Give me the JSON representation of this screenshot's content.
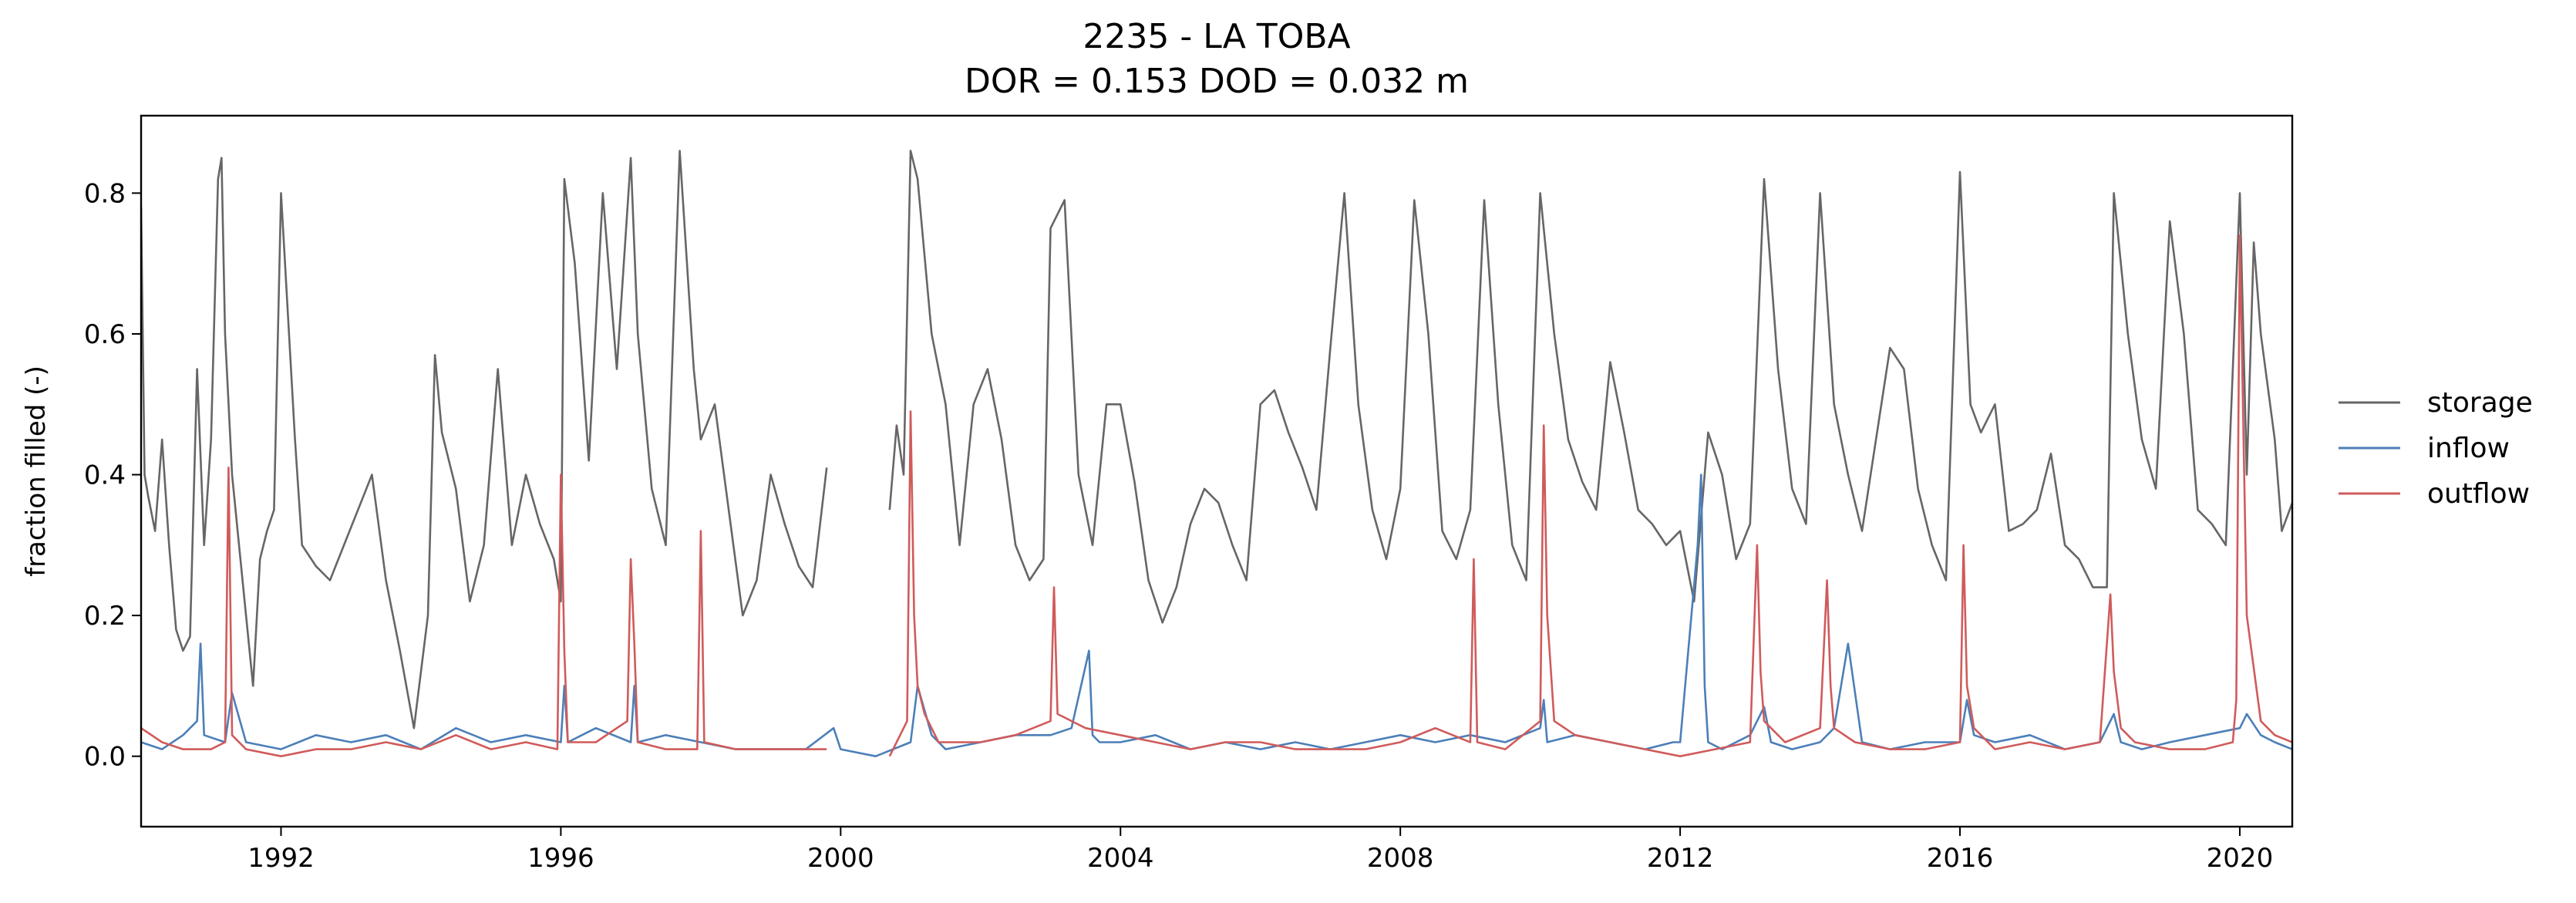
{
  "chart_data": {
    "type": "line",
    "title": "2235 - LA TOBA",
    "subtitle": "DOR = 0.153  DOD = 0.032 m",
    "xlabel": "",
    "ylabel": "fraction filled (-)",
    "xlim": [
      1990.0,
      2020.75
    ],
    "ylim": [
      -0.1,
      0.91
    ],
    "xticks": [
      1992,
      1996,
      2000,
      2004,
      2008,
      2012,
      2016,
      2020
    ],
    "xtick_labels": [
      "1992",
      "1996",
      "2000",
      "2004",
      "2008",
      "2012",
      "2016",
      "2020"
    ],
    "yticks": [
      0.0,
      0.2,
      0.4,
      0.6,
      0.8
    ],
    "ytick_labels": [
      "0.0",
      "0.2",
      "0.4",
      "0.6",
      "0.8"
    ],
    "grid": false,
    "legend_position": "right",
    "series": [
      {
        "name": "storage",
        "color": "#666666",
        "x": [
          1990.0,
          1990.05,
          1990.1,
          1990.2,
          1990.3,
          1990.4,
          1990.5,
          1990.6,
          1990.7,
          1990.8,
          1990.9,
          1991.0,
          1991.1,
          1991.15,
          1991.2,
          1991.3,
          1991.4,
          1991.5,
          1991.6,
          1991.7,
          1991.8,
          1991.9,
          1992.0,
          1992.2,
          1992.3,
          1992.5,
          1992.7,
          1992.9,
          1993.1,
          1993.3,
          1993.5,
          1993.7,
          1993.9,
          1994.1,
          1994.2,
          1994.3,
          1994.5,
          1994.7,
          1994.9,
          1995.1,
          1995.3,
          1995.5,
          1995.7,
          1995.9,
          1996.0,
          1996.05,
          1996.2,
          1996.4,
          1996.6,
          1996.8,
          1997.0,
          1997.1,
          1997.3,
          1997.5,
          1997.7,
          1997.9,
          1998.0,
          1998.2,
          1998.4,
          1998.6,
          1998.8,
          1999.0,
          1999.2,
          1999.4,
          1999.6,
          1999.8,
          null,
          2000.7,
          2000.8,
          2000.9,
          2001.0,
          2001.1,
          2001.3,
          2001.5,
          2001.7,
          2001.9,
          2002.1,
          2002.3,
          2002.5,
          2002.7,
          2002.9,
          2003.0,
          2003.2,
          2003.4,
          2003.6,
          2003.8,
          2004.0,
          2004.2,
          2004.4,
          2004.6,
          2004.8,
          2005.0,
          2005.2,
          2005.4,
          2005.6,
          2005.8,
          2006.0,
          2006.2,
          2006.4,
          2006.6,
          2006.8,
          2007.0,
          2007.2,
          2007.4,
          2007.6,
          2007.8,
          2008.0,
          2008.2,
          2008.4,
          2008.6,
          2008.8,
          2009.0,
          2009.2,
          2009.4,
          2009.6,
          2009.8,
          2010.0,
          2010.2,
          2010.4,
          2010.6,
          2010.8,
          2011.0,
          2011.2,
          2011.4,
          2011.6,
          2011.8,
          2012.0,
          2012.2,
          2012.4,
          2012.6,
          2012.8,
          2013.0,
          2013.2,
          2013.4,
          2013.6,
          2013.8,
          2014.0,
          2014.2,
          2014.4,
          2014.6,
          2014.8,
          2015.0,
          2015.2,
          2015.4,
          2015.6,
          2015.8,
          2016.0,
          2016.15,
          2016.3,
          2016.5,
          2016.7,
          2016.9,
          2017.1,
          2017.3,
          2017.5,
          2017.7,
          2017.9,
          2018.1,
          2018.2,
          2018.4,
          2018.6,
          2018.8,
          2019.0,
          2019.2,
          2019.4,
          2019.6,
          2019.8,
          2020.0,
          2020.1,
          2020.2,
          2020.3,
          2020.5,
          2020.6,
          2020.75
        ],
        "y": [
          0.78,
          0.4,
          0.37,
          0.32,
          0.45,
          0.3,
          0.18,
          0.15,
          0.17,
          0.55,
          0.3,
          0.45,
          0.82,
          0.85,
          0.6,
          0.4,
          0.3,
          0.2,
          0.1,
          0.28,
          0.32,
          0.35,
          0.8,
          0.45,
          0.3,
          0.27,
          0.25,
          0.3,
          0.35,
          0.4,
          0.25,
          0.15,
          0.04,
          0.2,
          0.57,
          0.46,
          0.38,
          0.22,
          0.3,
          0.55,
          0.3,
          0.4,
          0.33,
          0.28,
          0.22,
          0.82,
          0.7,
          0.42,
          0.8,
          0.55,
          0.85,
          0.6,
          0.38,
          0.3,
          0.86,
          0.55,
          0.45,
          0.5,
          0.35,
          0.2,
          0.25,
          0.4,
          0.33,
          0.27,
          0.24,
          0.41,
          null,
          0.35,
          0.47,
          0.4,
          0.86,
          0.82,
          0.6,
          0.5,
          0.3,
          0.5,
          0.55,
          0.45,
          0.3,
          0.25,
          0.28,
          0.75,
          0.79,
          0.4,
          0.3,
          0.5,
          0.5,
          0.39,
          0.25,
          0.19,
          0.24,
          0.33,
          0.38,
          0.36,
          0.3,
          0.25,
          0.5,
          0.52,
          0.46,
          0.41,
          0.35,
          0.58,
          0.8,
          0.5,
          0.35,
          0.28,
          0.38,
          0.79,
          0.6,
          0.32,
          0.28,
          0.35,
          0.79,
          0.5,
          0.3,
          0.25,
          0.8,
          0.6,
          0.45,
          0.39,
          0.35,
          0.56,
          0.46,
          0.35,
          0.33,
          0.3,
          0.32,
          0.22,
          0.46,
          0.4,
          0.28,
          0.33,
          0.82,
          0.55,
          0.38,
          0.33,
          0.8,
          0.5,
          0.4,
          0.32,
          0.45,
          0.58,
          0.55,
          0.38,
          0.3,
          0.25,
          0.83,
          0.5,
          0.46,
          0.5,
          0.32,
          0.33,
          0.35,
          0.43,
          0.3,
          0.28,
          0.24,
          0.24,
          0.8,
          0.6,
          0.45,
          0.38,
          0.76,
          0.6,
          0.35,
          0.33,
          0.3,
          0.8,
          0.4,
          0.73,
          0.6,
          0.45,
          0.32,
          0.36
        ]
      },
      {
        "name": "inflow",
        "color": "#4c7fb8",
        "x": [
          1990.0,
          1990.3,
          1990.6,
          1990.8,
          1990.85,
          1990.9,
          1991.2,
          1991.3,
          1991.5,
          1992.0,
          1992.5,
          1993.0,
          1993.5,
          1994.0,
          1994.5,
          1995.0,
          1995.5,
          1996.0,
          1996.05,
          1996.1,
          1996.5,
          1997.0,
          1997.05,
          1997.1,
          1997.5,
          1998.0,
          1998.5,
          1999.0,
          1999.5,
          1999.9,
          2000.0,
          2000.5,
          2001.0,
          2001.1,
          2001.3,
          2001.5,
          2002.0,
          2002.5,
          2003.0,
          2003.3,
          2003.55,
          2003.6,
          2003.7,
          2004.0,
          2004.5,
          2005.0,
          2005.5,
          2006.0,
          2006.5,
          2007.0,
          2007.5,
          2008.0,
          2008.5,
          2009.0,
          2009.5,
          2010.0,
          2010.05,
          2010.1,
          2010.5,
          2011.0,
          2011.5,
          2011.9,
          2012.0,
          2012.25,
          2012.3,
          2012.35,
          2012.4,
          2012.6,
          2013.0,
          2013.2,
          2013.3,
          2013.6,
          2014.0,
          2014.2,
          2014.4,
          2014.6,
          2015.0,
          2015.5,
          2016.0,
          2016.1,
          2016.2,
          2016.5,
          2017.0,
          2017.5,
          2018.0,
          2018.2,
          2018.3,
          2018.6,
          2019.0,
          2019.5,
          2020.0,
          2020.1,
          2020.3,
          2020.5,
          2020.75
        ],
        "y": [
          0.02,
          0.01,
          0.03,
          0.05,
          0.16,
          0.03,
          0.02,
          0.09,
          0.02,
          0.01,
          0.03,
          0.02,
          0.03,
          0.01,
          0.04,
          0.02,
          0.03,
          0.02,
          0.1,
          0.02,
          0.04,
          0.02,
          0.1,
          0.02,
          0.03,
          0.02,
          0.01,
          0.01,
          0.01,
          0.04,
          0.01,
          0.0,
          0.02,
          0.1,
          0.03,
          0.01,
          0.02,
          0.03,
          0.03,
          0.04,
          0.15,
          0.03,
          0.02,
          0.02,
          0.03,
          0.01,
          0.02,
          0.01,
          0.02,
          0.01,
          0.02,
          0.03,
          0.02,
          0.03,
          0.02,
          0.04,
          0.08,
          0.02,
          0.03,
          0.02,
          0.01,
          0.02,
          0.02,
          0.3,
          0.4,
          0.1,
          0.02,
          0.01,
          0.03,
          0.07,
          0.02,
          0.01,
          0.02,
          0.04,
          0.16,
          0.02,
          0.01,
          0.02,
          0.02,
          0.08,
          0.03,
          0.02,
          0.03,
          0.01,
          0.02,
          0.06,
          0.02,
          0.01,
          0.02,
          0.03,
          0.04,
          0.06,
          0.03,
          0.02,
          0.01
        ]
      },
      {
        "name": "outflow",
        "color": "#d05b5b",
        "x": [
          1990.0,
          1990.3,
          1990.6,
          1991.0,
          1991.2,
          1991.25,
          1991.3,
          1991.5,
          1992.0,
          1992.5,
          1993.0,
          1993.5,
          1994.0,
          1994.5,
          1995.0,
          1995.5,
          1995.95,
          1996.0,
          1996.05,
          1996.1,
          1996.5,
          1996.95,
          1997.0,
          1997.05,
          1997.1,
          1997.5,
          1997.95,
          1998.0,
          1998.05,
          1998.5,
          1999.0,
          1999.5,
          1999.8,
          null,
          2000.7,
          2000.95,
          2001.0,
          2001.05,
          2001.1,
          2001.2,
          2001.4,
          2002.0,
          2002.5,
          2003.0,
          2003.05,
          2003.1,
          2003.5,
          2004.0,
          2004.5,
          2005.0,
          2005.5,
          2006.0,
          2006.5,
          2007.0,
          2007.5,
          2008.0,
          2008.5,
          2009.0,
          2009.05,
          2009.1,
          2009.5,
          2010.0,
          2010.05,
          2010.1,
          2010.2,
          2010.5,
          2011.0,
          2011.5,
          2012.0,
          2012.5,
          2013.0,
          2013.1,
          2013.15,
          2013.2,
          2013.5,
          2014.0,
          2014.1,
          2014.15,
          2014.2,
          2014.5,
          2015.0,
          2015.5,
          2016.0,
          2016.05,
          2016.1,
          2016.2,
          2016.5,
          2017.0,
          2017.5,
          2018.0,
          2018.15,
          2018.2,
          2018.3,
          2018.5,
          2019.0,
          2019.5,
          2019.9,
          2019.95,
          2020.0,
          2020.1,
          2020.3,
          2020.5,
          2020.75
        ],
        "y": [
          0.04,
          0.02,
          0.01,
          0.01,
          0.02,
          0.41,
          0.03,
          0.01,
          0.0,
          0.01,
          0.01,
          0.02,
          0.01,
          0.03,
          0.01,
          0.02,
          0.01,
          0.4,
          0.15,
          0.02,
          0.02,
          0.05,
          0.28,
          0.16,
          0.02,
          0.01,
          0.01,
          0.32,
          0.02,
          0.01,
          0.01,
          0.01,
          0.01,
          null,
          0.0,
          0.05,
          0.49,
          0.2,
          0.1,
          0.06,
          0.02,
          0.02,
          0.03,
          0.05,
          0.24,
          0.06,
          0.04,
          0.03,
          0.02,
          0.01,
          0.02,
          0.02,
          0.01,
          0.01,
          0.01,
          0.02,
          0.04,
          0.02,
          0.28,
          0.02,
          0.01,
          0.05,
          0.47,
          0.2,
          0.05,
          0.03,
          0.02,
          0.01,
          0.0,
          0.01,
          0.02,
          0.3,
          0.12,
          0.05,
          0.02,
          0.04,
          0.25,
          0.1,
          0.04,
          0.02,
          0.01,
          0.01,
          0.02,
          0.3,
          0.1,
          0.04,
          0.01,
          0.02,
          0.01,
          0.02,
          0.23,
          0.12,
          0.04,
          0.02,
          0.01,
          0.01,
          0.02,
          0.08,
          0.74,
          0.2,
          0.05,
          0.03,
          0.02
        ]
      }
    ]
  }
}
